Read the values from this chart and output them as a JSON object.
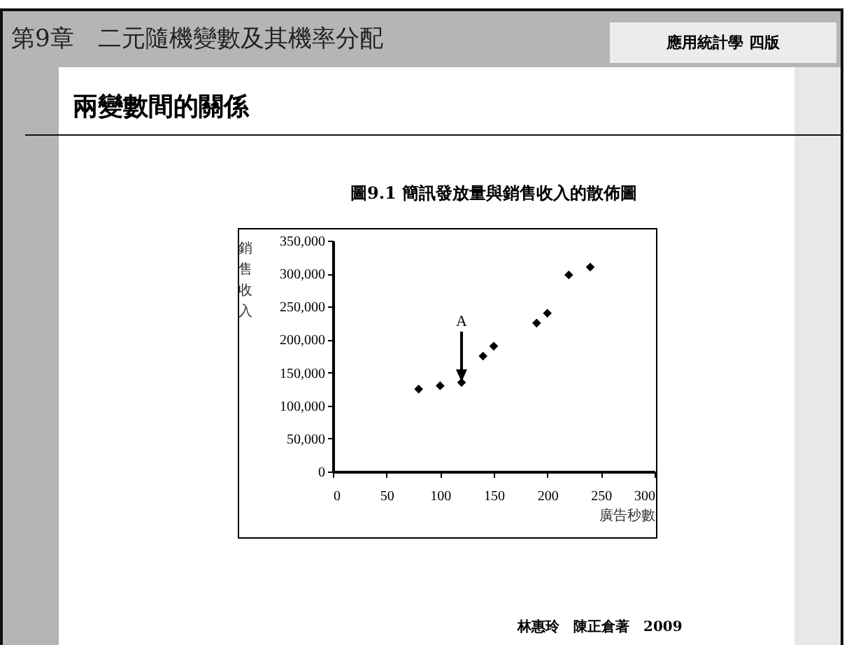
{
  "chart_data": {
    "type": "scatter",
    "title": "圖9.1  簡訊發放量與銷售收入的散佈圖",
    "xlabel": "廣告秒數",
    "ylabel": "銷售收入",
    "x": [
      80,
      100,
      120,
      140,
      150,
      190,
      200,
      220,
      240
    ],
    "values": [
      125000,
      130000,
      135000,
      175000,
      190000,
      225000,
      240000,
      298000,
      310000
    ],
    "color": "#000000",
    "marker": "diamond",
    "grid": false,
    "xlim": [
      0,
      300
    ],
    "xticks": [
      0,
      50,
      100,
      150,
      200,
      250,
      300
    ],
    "ylim": [
      0,
      350000
    ],
    "yticks": [
      0,
      {
        "value": 50000,
        "label": "50,000"
      },
      {
        "value": 100000,
        "label": "100,000"
      },
      {
        "value": 150000,
        "label": "150,000"
      },
      {
        "value": 200000,
        "label": "200,000"
      },
      {
        "value": 250000,
        "label": "250,000"
      },
      {
        "value": 300000,
        "label": "300,000"
      },
      {
        "value": 350000,
        "label": "350,000"
      }
    ],
    "annotations": [
      "第9章　二元隨機變數及其機率分配",
      "應用統計學 四版",
      "兩變數間的關係",
      "林惠玲　陳正倉著　2009",
      {
        "text": "A",
        "x": 120,
        "y": 135000
      }
    ]
  }
}
